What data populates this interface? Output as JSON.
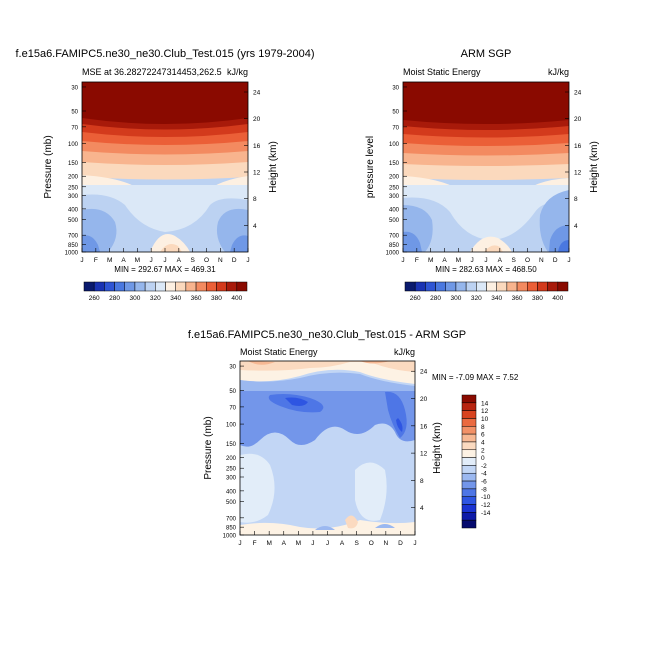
{
  "chart_data": [
    {
      "type": "heatmap",
      "title": "f.e15a6.FAMIPC5.ne30_ne30.Club_Test.015 (yrs 1979-2004)",
      "left_subtitle": "MSE at 36.28272247314453,262.5",
      "right_subtitle": "kJ/kg",
      "ylabel": "Pressure (mb)",
      "ylabel_right": "Height (km)",
      "x_ticks": [
        "J",
        "F",
        "M",
        "A",
        "M",
        "J",
        "J",
        "A",
        "S",
        "O",
        "N",
        "D",
        "J"
      ],
      "y_ticks": [
        30,
        50,
        70,
        100,
        150,
        200,
        250,
        300,
        400,
        500,
        700,
        850,
        1000
      ],
      "height_ticks": [
        4,
        8,
        12,
        16,
        20,
        24
      ],
      "min_max": "MIN = 292.67  MAX = 469.31",
      "color_levels": [
        260,
        280,
        300,
        320,
        340,
        360,
        380,
        400
      ],
      "colorbar_orientation": "horizontal"
    },
    {
      "type": "heatmap",
      "title": "ARM SGP",
      "left_subtitle": "Moist Static Energy",
      "right_subtitle": "kJ/kg",
      "ylabel": "pressure level",
      "ylabel_right": "Height (km)",
      "x_ticks": [
        "J",
        "F",
        "M",
        "A",
        "M",
        "J",
        "J",
        "A",
        "S",
        "O",
        "N",
        "D",
        "J"
      ],
      "y_ticks": [
        30,
        50,
        70,
        100,
        150,
        200,
        250,
        300,
        400,
        500,
        700,
        850,
        1000
      ],
      "height_ticks": [
        4,
        8,
        12,
        16,
        20,
        24
      ],
      "min_max": "MIN = 282.63  MAX = 468.50",
      "color_levels": [
        260,
        280,
        300,
        320,
        340,
        360,
        380,
        400
      ],
      "colorbar_orientation": "horizontal"
    },
    {
      "type": "heatmap",
      "title": "f.e15a6.FAMIPC5.ne30_ne30.Club_Test.015 - ARM SGP",
      "left_subtitle": "Moist Static Energy",
      "right_subtitle": "kJ/kg",
      "ylabel": "Pressure (mb)",
      "ylabel_right": "Height (km)",
      "x_ticks": [
        "J",
        "F",
        "M",
        "A",
        "M",
        "J",
        "J",
        "A",
        "S",
        "O",
        "N",
        "D",
        "J"
      ],
      "y_ticks": [
        30,
        50,
        70,
        100,
        150,
        200,
        250,
        300,
        400,
        500,
        700,
        850,
        1000
      ],
      "height_ticks": [
        4,
        8,
        12,
        16,
        20,
        24
      ],
      "min_max": "MIN =  -7.09  MAX =   7.52",
      "color_levels": [
        -14,
        -12,
        -10,
        -8,
        -6,
        -4,
        -2,
        0,
        2,
        4,
        6,
        8,
        10,
        12,
        14
      ],
      "colorbar_orientation": "vertical"
    }
  ],
  "colors": {
    "abs_palette": [
      "#0a1a6e",
      "#1a33b3",
      "#2f55d4",
      "#4a78e0",
      "#6f98e6",
      "#95b6ec",
      "#bcd2f2",
      "#dbe8f7",
      "#fdf0e2",
      "#fbd9bd",
      "#f8b48e",
      "#f38a60",
      "#eb5f37",
      "#d33a1c",
      "#a81a0a",
      "#8a0a00"
    ],
    "diff_palette": [
      "#050a6e",
      "#0e1aa8",
      "#1a33d2",
      "#2e55e2",
      "#4e76e6",
      "#7396ea",
      "#9bb8f0",
      "#c2d6f5",
      "#e2edf9",
      "#fdf2e4",
      "#fbdac0",
      "#f7b893",
      "#f29167",
      "#ea6a40",
      "#d8431f",
      "#b82410",
      "#8a0a00"
    ]
  }
}
